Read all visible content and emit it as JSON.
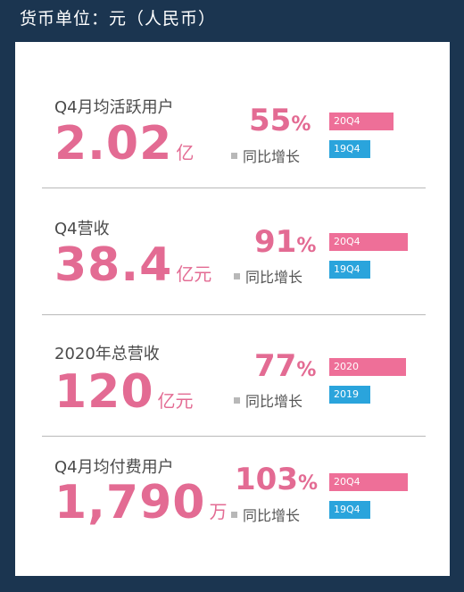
{
  "header": {
    "text": "货币单位：元（人民币）"
  },
  "sections": [
    {
      "label": "Q4月均活跃用户",
      "value": "2.02",
      "unit": "亿",
      "growth": "55",
      "growth_suffix": "%",
      "yoy_label": "同比增长",
      "cur_label": "20Q4",
      "prev_label": "19Q4"
    },
    {
      "label": "Q4营收",
      "value": "38.4",
      "unit": "亿元",
      "growth": "91",
      "growth_suffix": "%",
      "yoy_label": "同比增长",
      "cur_label": "20Q4",
      "prev_label": "19Q4"
    },
    {
      "label": "2020年总营收",
      "value": "120",
      "unit": "亿元",
      "growth": "77",
      "growth_suffix": "%",
      "yoy_label": "同比增长",
      "cur_label": "2020",
      "prev_label": "2019"
    },
    {
      "label": "Q4月均付费用户",
      "value": "1,790",
      "unit": "万",
      "growth": "103",
      "growth_suffix": "%",
      "yoy_label": "同比增长",
      "cur_label": "20Q4",
      "prev_label": "19Q4"
    }
  ],
  "colors": {
    "accent_pink": "#e36b93",
    "bar_pink": "#ee6f98",
    "bar_blue": "#2aa4dc",
    "background": "#1b3550"
  }
}
